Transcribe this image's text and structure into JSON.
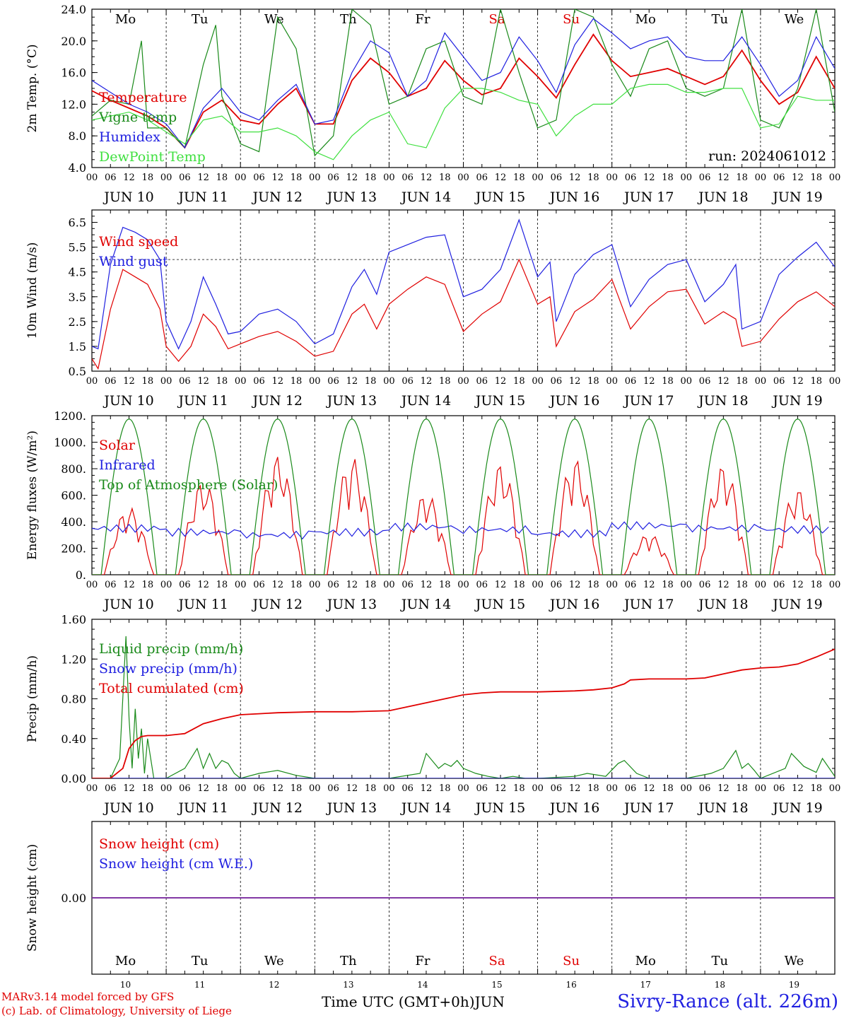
{
  "run_label": "run: 2024061012",
  "day_tick_labels": [
    "00",
    "06",
    "12",
    "18"
  ],
  "date_labels": [
    "JUN 10",
    "JUN 11",
    "JUN 12",
    "JUN 13",
    "JUN 14",
    "JUN 15",
    "JUN 16",
    "JUN 17",
    "JUN 18",
    "JUN 19"
  ],
  "weekdays": [
    "Mo",
    "Tu",
    "We",
    "Th",
    "Fr",
    "Sa",
    "Su",
    "Mo",
    "Tu",
    "We"
  ],
  "weekend_color": "#e00000",
  "bottom_day_numbers": [
    "10",
    "11",
    "12",
    "13",
    "14",
    "15",
    "16",
    "17",
    "18",
    "19"
  ],
  "footer": {
    "model_line1": "MARv3.14 model forced by GFS",
    "model_line2": "(c) Lab. of Climatology, University of Liege",
    "time_axis_label": "Time UTC (GMT+0h)",
    "month_label": "JUN",
    "station": "Sivry-Rance (alt. 226m)"
  },
  "chart_data": [
    {
      "type": "line",
      "ylabel": "2m Temp. (°C)",
      "ylim": [
        4,
        24
      ],
      "yticks": [
        "4.0",
        "8.0",
        "12.0",
        "16.0",
        "20.0",
        "24.0"
      ],
      "x_unit": "hours since JUN 10 00 UTC",
      "series": [
        {
          "name": "Temperature",
          "color": "#e00000",
          "x": [
            0,
            6,
            12,
            18,
            24,
            30,
            36,
            42,
            48,
            54,
            60,
            66,
            72,
            78,
            84,
            90,
            96,
            102,
            108,
            114,
            120,
            126,
            132,
            138,
            144,
            150,
            156,
            162,
            168,
            174,
            180,
            186,
            192,
            198,
            204,
            210,
            216,
            222,
            228,
            234,
            240
          ],
          "values": [
            13.7,
            12.5,
            11.5,
            10.5,
            9,
            6.5,
            11,
            12.5,
            10,
            9.5,
            12,
            14,
            9.5,
            9.5,
            15,
            17.8,
            16,
            13,
            14,
            17.5,
            15,
            13.2,
            14,
            17.8,
            15.5,
            12.8,
            17,
            20.8,
            17.5,
            15.5,
            16,
            16.5,
            15.5,
            14.5,
            15.5,
            18.8,
            15,
            12,
            13.5,
            18,
            14
          ]
        },
        {
          "name": "Vigne temp",
          "color": "#1a8a1a",
          "x": [
            0,
            6,
            12,
            16,
            18,
            24,
            30,
            36,
            40,
            42,
            48,
            54,
            60,
            66,
            72,
            78,
            84,
            90,
            96,
            102,
            108,
            114,
            120,
            126,
            132,
            138,
            144,
            150,
            156,
            162,
            168,
            174,
            180,
            186,
            192,
            198,
            204,
            210,
            216,
            222,
            228,
            234,
            240
          ],
          "values": [
            10.5,
            12.5,
            12,
            20,
            9,
            9,
            6.5,
            17,
            22,
            13,
            7,
            6,
            23,
            19,
            5.5,
            8,
            24,
            22,
            12,
            13,
            19,
            20,
            13,
            12,
            24,
            16,
            9,
            10,
            24,
            23,
            17,
            13,
            19,
            20,
            14,
            13,
            14,
            24,
            10,
            9,
            14,
            24,
            11
          ]
        },
        {
          "name": "Humidex",
          "color": "#2020e0",
          "x": [
            0,
            6,
            12,
            18,
            24,
            30,
            36,
            42,
            48,
            54,
            60,
            66,
            72,
            78,
            84,
            90,
            96,
            102,
            108,
            114,
            120,
            126,
            132,
            138,
            144,
            150,
            156,
            162,
            168,
            174,
            180,
            186,
            192,
            198,
            204,
            210,
            216,
            222,
            228,
            234,
            240
          ],
          "values": [
            15,
            13.5,
            12,
            11,
            9.5,
            6.5,
            11.5,
            14,
            11,
            10,
            12.5,
            14.5,
            9.5,
            10,
            16,
            20,
            18.5,
            13,
            15,
            21,
            18,
            15,
            16,
            20.5,
            17.5,
            13.5,
            19.5,
            22.8,
            21,
            19,
            20,
            20.5,
            18,
            17.5,
            17.5,
            20.5,
            17,
            13,
            15,
            20.5,
            16.5
          ]
        },
        {
          "name": "DewPoint Temp",
          "color": "#40e040",
          "x": [
            0,
            6,
            12,
            18,
            24,
            30,
            36,
            42,
            48,
            54,
            60,
            66,
            72,
            78,
            84,
            90,
            96,
            102,
            108,
            114,
            120,
            126,
            132,
            138,
            144,
            150,
            156,
            162,
            168,
            174,
            180,
            186,
            192,
            198,
            204,
            210,
            216,
            222,
            228,
            234,
            240
          ],
          "values": [
            10,
            10.5,
            11,
            10,
            8.5,
            7,
            10,
            10.5,
            8.5,
            8.5,
            9,
            8,
            6,
            5,
            8,
            10,
            11,
            7,
            6.5,
            11.5,
            14,
            14,
            13.5,
            12.5,
            12,
            8,
            10.5,
            12,
            12,
            14,
            14.5,
            14.5,
            13.5,
            13.5,
            14,
            14,
            9,
            9.5,
            13,
            12.5,
            12.5
          ]
        }
      ]
    },
    {
      "type": "line",
      "ylabel": "10m Wind (m/s)",
      "ylim": [
        0.5,
        7
      ],
      "yticks": [
        "0.5",
        "1.5",
        "2.5",
        "3.5",
        "4.5",
        "5.5",
        "6.5"
      ],
      "reference_line": 5,
      "series": [
        {
          "name": "Wind speed",
          "color": "#e00000",
          "x": [
            0,
            2,
            6,
            10,
            14,
            18,
            22,
            24,
            28,
            32,
            36,
            40,
            44,
            48,
            54,
            60,
            66,
            72,
            78,
            84,
            88,
            92,
            96,
            102,
            108,
            114,
            120,
            126,
            132,
            138,
            144,
            148,
            150,
            156,
            162,
            168,
            174,
            180,
            186,
            192,
            198,
            204,
            208,
            210,
            216,
            222,
            228,
            234,
            240
          ],
          "values": [
            1,
            0.6,
            3,
            4.6,
            4.3,
            4,
            3,
            1.5,
            0.9,
            1.5,
            2.8,
            2.3,
            1.4,
            1.6,
            1.9,
            2.1,
            1.7,
            1.1,
            1.3,
            2.8,
            3.2,
            2.2,
            3.2,
            3.8,
            4.3,
            4,
            2.1,
            2.8,
            3.3,
            5,
            3.2,
            3.5,
            1.5,
            2.9,
            3.4,
            4.2,
            2.2,
            3.1,
            3.7,
            3.8,
            2.4,
            2.9,
            2.6,
            1.5,
            1.7,
            2.6,
            3.3,
            3.7,
            3.1
          ]
        },
        {
          "name": "Wind gust",
          "color": "#2020e0",
          "x": [
            0,
            2,
            6,
            10,
            14,
            18,
            22,
            24,
            28,
            32,
            36,
            40,
            44,
            48,
            54,
            60,
            66,
            72,
            78,
            84,
            88,
            92,
            96,
            102,
            108,
            114,
            120,
            126,
            132,
            138,
            144,
            148,
            150,
            156,
            162,
            168,
            174,
            180,
            186,
            192,
            198,
            204,
            208,
            210,
            216,
            222,
            228,
            234,
            240
          ],
          "values": [
            1.5,
            1.4,
            4.8,
            6.3,
            6.1,
            5.8,
            5,
            2.5,
            1.4,
            2.5,
            4.3,
            3.2,
            2,
            2.1,
            2.8,
            3,
            2.5,
            1.6,
            2,
            3.9,
            4.6,
            3.6,
            5.3,
            5.6,
            5.9,
            6,
            3.5,
            3.8,
            4.6,
            6.6,
            4.3,
            4.9,
            2.5,
            4.4,
            5.2,
            5.6,
            3.1,
            4.2,
            4.8,
            5,
            3.3,
            4,
            4.8,
            2.2,
            2.5,
            4.4,
            5.1,
            5.7,
            4.7
          ]
        }
      ]
    },
    {
      "type": "line",
      "ylabel": "Energy fluxes (W/m²)",
      "ylim": [
        0,
        1200
      ],
      "yticks": [
        "0.",
        "200.",
        "400.",
        "600.",
        "800.",
        "1000.",
        "1200."
      ],
      "series": [
        {
          "name": "Solar",
          "color": "#e00000",
          "daily_peaks": [
            510,
            710,
            900,
            890,
            620,
            840,
            880,
            310,
            830,
            650
          ]
        },
        {
          "name": "Infrared",
          "color": "#2020e0",
          "daily_levels": [
            350,
            320,
            300,
            320,
            360,
            340,
            310,
            370,
            350,
            340
          ]
        },
        {
          "name": "Top of Atmosphere (Solar)",
          "color": "#1a8a1a",
          "daily_peak": 1175,
          "sunrise_hour": 3,
          "sunset_hour": 21
        }
      ]
    },
    {
      "type": "line",
      "ylabel": "Precip (mm/h)",
      "ylim": [
        0,
        1.6
      ],
      "yticks": [
        "0.00",
        "0.40",
        "0.80",
        "1.20",
        "1.60"
      ],
      "series": [
        {
          "name": "Liquid precip (mm/h)",
          "color": "#1a8a1a",
          "x": [
            0,
            6,
            9,
            11,
            12,
            13,
            14,
            15,
            16,
            17,
            18,
            20,
            24,
            30,
            34,
            36,
            38,
            40,
            42,
            44,
            46,
            48,
            54,
            60,
            66,
            72,
            96,
            106,
            108,
            112,
            114,
            116,
            118,
            120,
            124,
            128,
            132,
            136,
            140,
            144,
            156,
            160,
            166,
            170,
            172,
            176,
            180,
            192,
            200,
            204,
            208,
            210,
            212,
            214,
            216,
            224,
            226,
            230,
            234,
            236,
            240
          ],
          "values": [
            0,
            0,
            0.2,
            1.43,
            0.6,
            0.1,
            0.7,
            0.2,
            0.5,
            0.05,
            0.4,
            0,
            0,
            0.1,
            0.3,
            0.1,
            0.25,
            0.1,
            0.18,
            0.15,
            0.05,
            0,
            0.05,
            0.08,
            0.03,
            0,
            0,
            0.05,
            0.25,
            0.1,
            0.15,
            0.12,
            0.18,
            0.1,
            0.05,
            0.02,
            0,
            0.02,
            0,
            0,
            0.02,
            0.05,
            0.02,
            0.15,
            0.18,
            0.05,
            0,
            0,
            0.05,
            0.1,
            0.28,
            0.1,
            0.15,
            0.08,
            0,
            0.1,
            0.25,
            0.12,
            0.06,
            0.2,
            0.02
          ]
        },
        {
          "name": "Snow precip (mm/h)",
          "color": "#2020e0",
          "x": [
            0,
            240
          ],
          "values": [
            0,
            0
          ]
        },
        {
          "name": "Total cumulated (cm)",
          "color": "#e00000",
          "x": [
            0,
            6,
            10,
            12,
            14,
            16,
            18,
            24,
            30,
            36,
            42,
            48,
            54,
            60,
            72,
            84,
            96,
            102,
            108,
            114,
            120,
            126,
            132,
            138,
            144,
            156,
            162,
            168,
            172,
            174,
            180,
            192,
            198,
            204,
            210,
            216,
            222,
            228,
            234,
            240
          ],
          "values": [
            0,
            0,
            0.1,
            0.3,
            0.38,
            0.42,
            0.43,
            0.43,
            0.45,
            0.55,
            0.6,
            0.64,
            0.65,
            0.66,
            0.67,
            0.67,
            0.68,
            0.72,
            0.76,
            0.8,
            0.84,
            0.86,
            0.87,
            0.87,
            0.87,
            0.88,
            0.89,
            0.91,
            0.95,
            0.99,
            1.0,
            1.0,
            1.01,
            1.05,
            1.09,
            1.11,
            1.12,
            1.15,
            1.22,
            1.3
          ]
        }
      ]
    },
    {
      "type": "line",
      "ylabel": "Snow height (cm)",
      "yticks": [
        "0.00"
      ],
      "series": [
        {
          "name": "Snow height (cm)",
          "color": "#e00000",
          "x": [
            0,
            240
          ],
          "values": [
            0,
            0
          ]
        },
        {
          "name": "Snow height (cm W.E.)",
          "color": "#2020e0",
          "x": [
            0,
            240
          ],
          "values": [
            0,
            0
          ]
        }
      ]
    }
  ]
}
